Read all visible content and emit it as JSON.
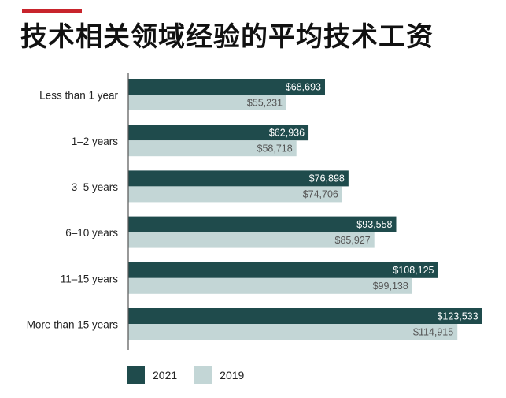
{
  "header": {
    "title": "技术相关领域经验的平均技术工资"
  },
  "colors": {
    "accent": "#c8242c",
    "series_2021": "#1f4b4c",
    "series_2019": "#c3d6d6",
    "axis": "#555555"
  },
  "chart_data": {
    "type": "bar",
    "orientation": "horizontal",
    "title": "技术相关领域经验的平均技术工资",
    "xlabel": "",
    "ylabel": "",
    "xlim": [
      0,
      130000
    ],
    "grid": false,
    "legend_position": "bottom-left",
    "categories": [
      "Less than 1 year",
      "1–2 years",
      "3–5 years",
      "6–10 years",
      "11–15 years",
      "More than 15 years"
    ],
    "series": [
      {
        "name": "2021",
        "values": [
          68693,
          62936,
          76898,
          93558,
          108125,
          123533
        ],
        "labels": [
          "$68,693",
          "$62,936",
          "$76,898",
          "$93,558",
          "$108,125",
          "$123,533"
        ],
        "color": "#1f4b4c",
        "label_color": "#ffffff"
      },
      {
        "name": "2019",
        "values": [
          55231,
          58718,
          74706,
          85927,
          99138,
          114915
        ],
        "labels": [
          "$55,231",
          "$58,718",
          "$74,706",
          "$85,927",
          "$99,138",
          "$114,915"
        ],
        "color": "#c3d6d6",
        "label_color": "#555555"
      }
    ]
  },
  "legend": {
    "items": [
      {
        "label": "2021",
        "color": "#1f4b4c"
      },
      {
        "label": "2019",
        "color": "#c3d6d6"
      }
    ]
  }
}
